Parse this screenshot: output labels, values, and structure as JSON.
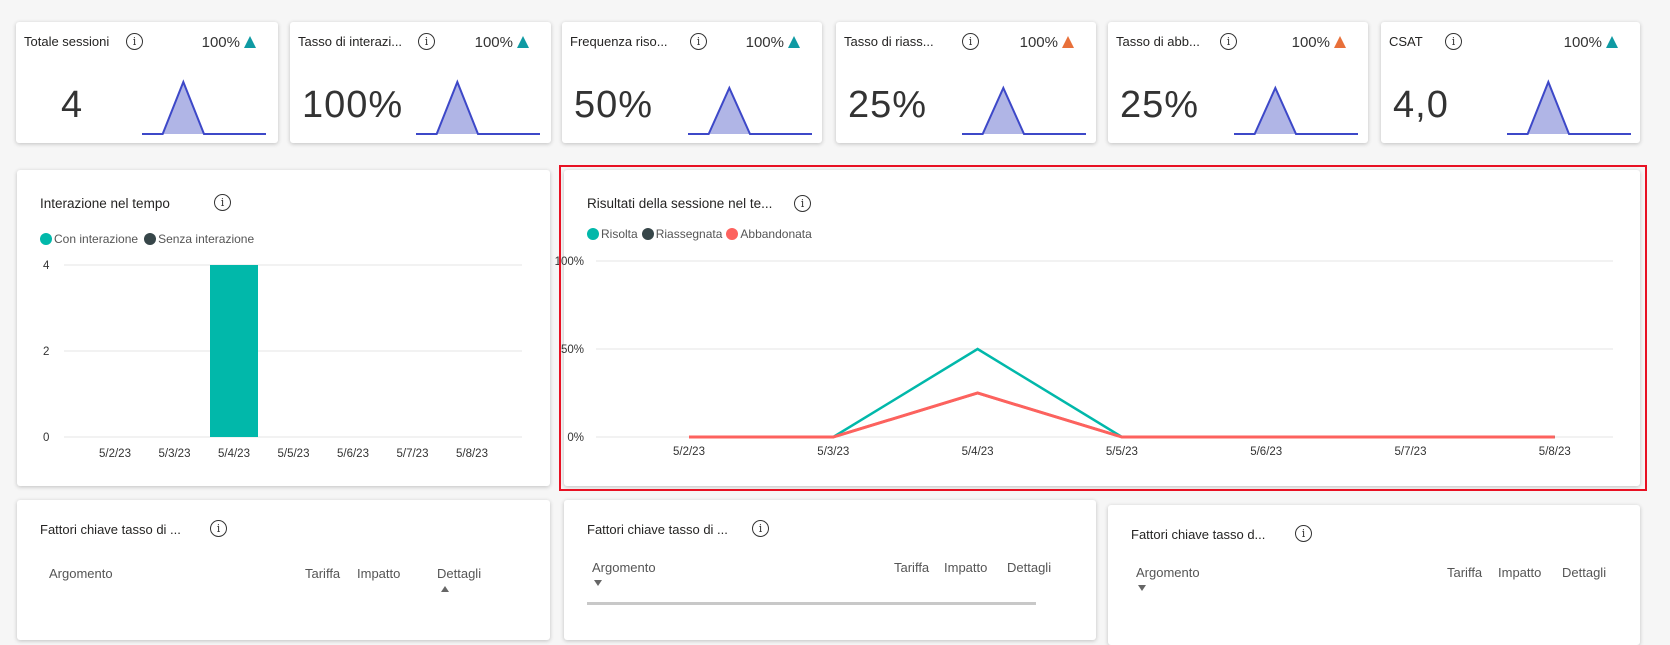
{
  "kpis": [
    {
      "title": "Totale sessioni",
      "delta": "100%",
      "trend": "up",
      "trend_color": "#0f9aa3",
      "value": "4",
      "spark": [
        0,
        0,
        4,
        0,
        0,
        0,
        0
      ]
    },
    {
      "title": "Tasso di interazi...",
      "delta": "100%",
      "trend": "up",
      "trend_color": "#0f9aa3",
      "value": "100%",
      "spark": [
        0,
        0,
        1,
        0,
        0,
        0,
        0
      ]
    },
    {
      "title": "Frequenza riso...",
      "delta": "100%",
      "trend": "up",
      "trend_color": "#0f9aa3",
      "value": "50%",
      "spark": [
        0,
        0,
        1,
        0,
        0,
        0,
        0
      ]
    },
    {
      "title": "Tasso di riass...",
      "delta": "100%",
      "trend": "up",
      "trend_color": "#e8703a",
      "value": "25%",
      "spark": [
        0,
        0,
        1,
        0,
        0,
        0,
        0
      ]
    },
    {
      "title": "Tasso di abb...",
      "delta": "100%",
      "trend": "up",
      "trend_color": "#e8703a",
      "value": "25%",
      "spark": [
        0,
        0,
        1,
        0,
        0,
        0,
        0
      ]
    },
    {
      "title": "CSAT",
      "delta": "100%",
      "trend": "up",
      "trend_color": "#0f9aa3",
      "value": "4,0",
      "spark": [
        0,
        0,
        4,
        0,
        0,
        0,
        0
      ]
    }
  ],
  "chart_data": [
    {
      "type": "bar",
      "title": "Interazione nel tempo",
      "categories": [
        "5/2/23",
        "5/3/23",
        "5/4/23",
        "5/5/23",
        "5/6/23",
        "5/7/23",
        "5/8/23"
      ],
      "series": [
        {
          "name": "Con interazione",
          "color": "#01b8aa",
          "values": [
            0,
            0,
            4,
            0,
            0,
            0,
            0
          ]
        },
        {
          "name": "Senza interazione",
          "color": "#374649",
          "values": [
            0,
            0,
            0,
            0,
            0,
            0,
            0
          ]
        }
      ],
      "yticks": [
        "0",
        "2",
        "4"
      ],
      "ylim": [
        0,
        4
      ],
      "legend": "top-left"
    },
    {
      "type": "line",
      "title": "Risultati della sessione nel te...",
      "categories": [
        "5/2/23",
        "5/3/23",
        "5/4/23",
        "5/5/23",
        "5/6/23",
        "5/7/23",
        "5/8/23"
      ],
      "series": [
        {
          "name": "Risolta",
          "color": "#01b8aa",
          "values": [
            0,
            0,
            50,
            0,
            0,
            0,
            0
          ]
        },
        {
          "name": "Riassegnata",
          "color": "#374649",
          "values": [
            0,
            0,
            25,
            0,
            0,
            0,
            0
          ]
        },
        {
          "name": "Abbandonata",
          "color": "#fd625e",
          "values": [
            0,
            0,
            25,
            0,
            0,
            0,
            0
          ]
        }
      ],
      "yticks": [
        "0%",
        "50%",
        "100%"
      ],
      "ylim": [
        0,
        100
      ],
      "legend": "top-left"
    }
  ],
  "drivers": [
    {
      "title": "Fattori chiave tasso di ...",
      "cols": [
        "Argomento",
        "Tariffa",
        "Impatto",
        "Dettagli"
      ]
    },
    {
      "title": "Fattori chiave tasso di ...",
      "cols": [
        "Argomento",
        "Tariffa",
        "Impatto",
        "Dettagli"
      ]
    },
    {
      "title": "Fattori chiave tasso d...",
      "cols": [
        "Argomento",
        "Tariffa",
        "Impatto",
        "Dettagli"
      ]
    }
  ],
  "info_glyph": "i"
}
